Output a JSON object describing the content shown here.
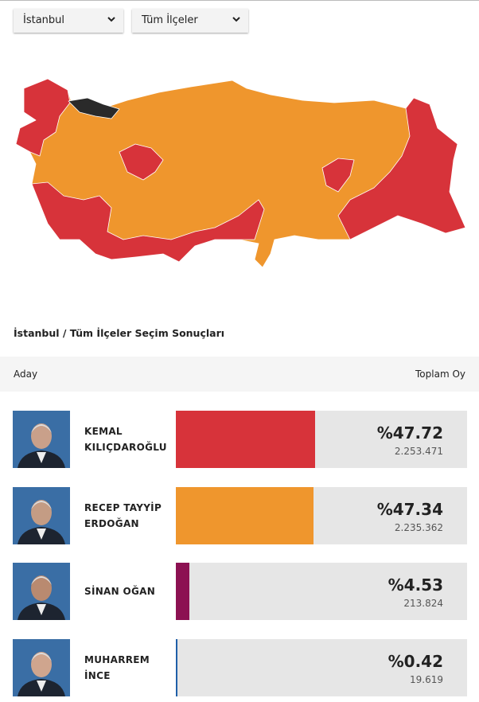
{
  "filters": {
    "province": "İstanbul",
    "district": "Tüm İlçeler"
  },
  "results_title": "İstanbul / Tüm İlçeler Seçim Sonuçları",
  "table": {
    "header": {
      "candidate": "Aday",
      "total": "Toplam Oy"
    },
    "candidates": [
      {
        "name_lines": [
          "KEMAL",
          "KILIÇDAROĞLU"
        ],
        "share": {
          "value": 47.72,
          "label": "%47.72"
        },
        "votes": "2.253.471",
        "color": "#d7333a"
      },
      {
        "name_lines": [
          "RECEP TAYYİP",
          "ERDOĞAN"
        ],
        "share": {
          "value": 47.34,
          "label": "%47.34"
        },
        "votes": "2.235.362",
        "color": "#ef962d"
      },
      {
        "name_lines": [
          "SİNAN OĞAN"
        ],
        "share": {
          "value": 4.53,
          "label": "%4.53"
        },
        "votes": "213.824",
        "color": "#8c1152"
      },
      {
        "name_lines": [
          "MUHARREM",
          "İNCE"
        ],
        "share": {
          "value": 0.42,
          "label": "%0.42"
        },
        "votes": "19.619",
        "color": "#1f5fa8"
      }
    ]
  }
}
